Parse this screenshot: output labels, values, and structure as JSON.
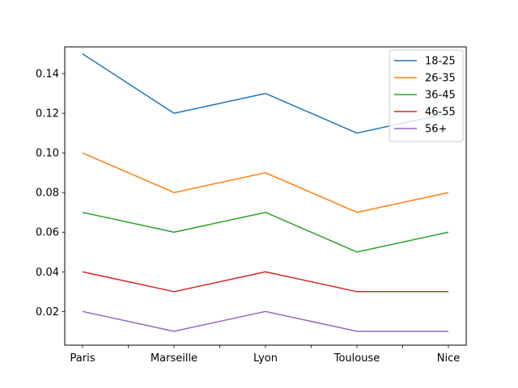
{
  "chart_data": {
    "type": "line",
    "categories": [
      "Paris",
      "Marseille",
      "Lyon",
      "Toulouse",
      "Nice"
    ],
    "series": [
      {
        "name": "18-25",
        "color": "#1f77b4",
        "values": [
          0.15,
          0.12,
          0.13,
          0.11,
          0.12
        ]
      },
      {
        "name": "26-35",
        "color": "#ff7f0e",
        "values": [
          0.1,
          0.08,
          0.09,
          0.07,
          0.08
        ]
      },
      {
        "name": "36-45",
        "color": "#2ca02c",
        "values": [
          0.07,
          0.06,
          0.07,
          0.05,
          0.06
        ]
      },
      {
        "name": "46-55",
        "color": "#d62728",
        "values": [
          0.04,
          0.03,
          0.04,
          0.03,
          0.03
        ]
      },
      {
        "name": "56+",
        "color": "#9467bd",
        "values": [
          0.02,
          0.01,
          0.02,
          0.01,
          0.01
        ]
      }
    ],
    "yticks": [
      "0.02",
      "0.04",
      "0.06",
      "0.08",
      "0.10",
      "0.12",
      "0.14"
    ],
    "ylim": [
      0.003,
      0.1535
    ],
    "x_minor_ticks": true,
    "grid": false,
    "legend": "top-right",
    "title": "",
    "xlabel": "",
    "ylabel": ""
  }
}
